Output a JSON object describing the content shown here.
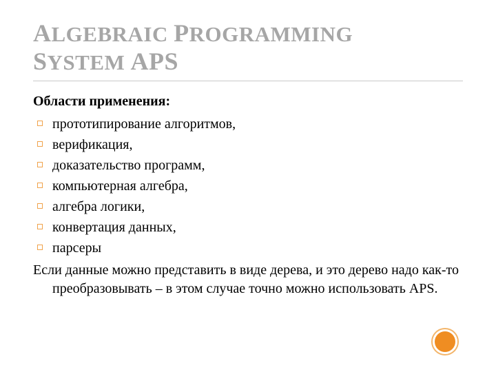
{
  "colors": {
    "title_color": "#a6a6a6",
    "rule_color": "#c9c9c9",
    "bullet_border": "#f0a24a",
    "circle_ring": "#f3b56a",
    "circle_fill": "#ef8d22",
    "text_color": "#000000",
    "background": "#ffffff"
  },
  "typography": {
    "title_font": "Georgia",
    "title_fontsize_small": 31,
    "title_fontsize_caps": 36,
    "body_font": "Times New Roman",
    "body_fontsize": 20,
    "subheading_bold": true
  },
  "title_parts": {
    "a": "A",
    "lgebraic": "LGEBRAIC ",
    "p": "P",
    "rogramming": "ROGRAMMING ",
    "s": "S",
    "ystem": "YSTEM ",
    "aps": "APS"
  },
  "subheading": "Области применения:",
  "bullets": [
    "прототипирование алгоритмов,",
    "верификация,",
    "доказательство программ,",
    "компьютерная алгебра,",
    "алгебра логики,",
    "конвертация данных,",
    "парсеры"
  ],
  "tail": "Если данные можно представить в виде дерева, и это дерево надо как-то преобразовывать – в этом случае точно можно использовать APS."
}
